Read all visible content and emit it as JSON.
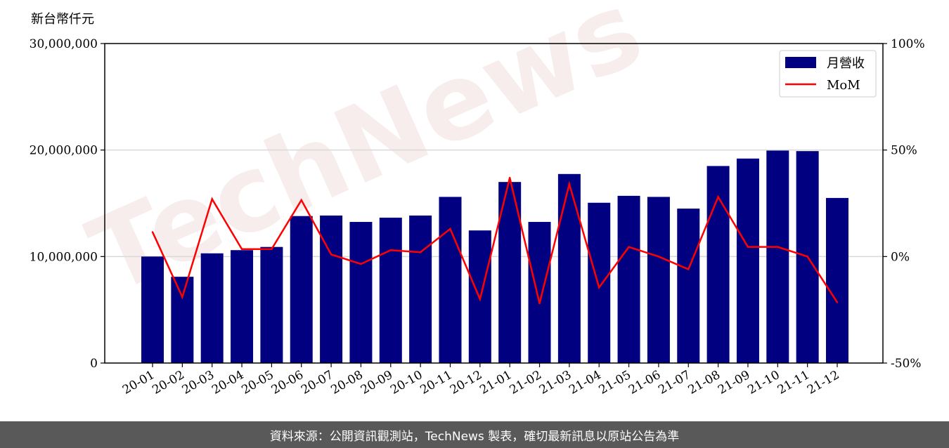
{
  "chart_data": {
    "type": "bar",
    "y_unit_label": "新台幣仟元",
    "categories": [
      "20-01",
      "20-02",
      "20-03",
      "20-04",
      "20-05",
      "20-06",
      "20-07",
      "20-08",
      "20-09",
      "20-10",
      "20-11",
      "20-12",
      "21-01",
      "21-02",
      "21-03",
      "21-04",
      "21-05",
      "21-06",
      "21-07",
      "21-08",
      "21-09",
      "21-10",
      "21-11",
      "21-12"
    ],
    "series": [
      {
        "name": "月營收",
        "type": "bar",
        "axis": "left",
        "color": "#000080",
        "values": [
          10000000,
          8100000,
          10300000,
          10600000,
          10900000,
          13800000,
          13850000,
          13250000,
          13650000,
          13850000,
          15600000,
          12450000,
          17000000,
          13250000,
          17750000,
          15050000,
          15700000,
          15600000,
          14500000,
          18500000,
          19200000,
          19950000,
          19900000,
          15500000
        ]
      },
      {
        "name": "MoM",
        "type": "line",
        "axis": "right",
        "color": "#ff0000",
        "values": [
          11.5,
          -19,
          27,
          3.5,
          3.5,
          26.5,
          1,
          -3.5,
          3,
          2,
          13,
          -20,
          37,
          -22,
          34,
          -14.5,
          4.5,
          0,
          -6,
          28,
          4.5,
          4.5,
          0,
          -21.5
        ]
      }
    ],
    "y_left": {
      "min": 0,
      "max": 30000000,
      "ticks": [
        0,
        10000000,
        20000000,
        30000000
      ],
      "tick_labels": [
        "0",
        "10,000,000",
        "20,000,000",
        "30,000,000"
      ]
    },
    "y_right": {
      "min": -50,
      "max": 100,
      "ticks": [
        -50,
        0,
        50,
        100
      ],
      "tick_labels": [
        "-50%",
        "0%",
        "50%",
        "100%"
      ]
    },
    "grid": "horizontal",
    "legend_position": "top-right",
    "watermark": "TechNews"
  },
  "footer": {
    "source_text": "資料來源：公開資訊觀測站，TechNews 製表，確切最新訊息以原站公告為準"
  }
}
